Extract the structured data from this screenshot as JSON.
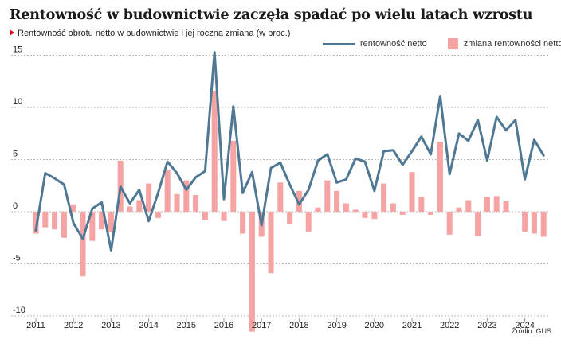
{
  "header": {
    "title": "Rentowność w budownictwie zaczęła spadać po wielu latach wzrostu",
    "subtitle": "Rentowność obrotu netto w budownictwie i jej roczna zmiana (w proc.)"
  },
  "legend": {
    "line_label": "rentowność netto",
    "bar_label": "zmiana rentowności netto"
  },
  "source": "Źródło: GUS",
  "colors": {
    "line": "#4e7893",
    "bars": "#f6a3a3",
    "grid": "#b8b8b8",
    "accent": "#e2001a"
  },
  "chart_data": {
    "type": "bar+line",
    "x_start": "2011-Q1",
    "categories": [
      "2011-Q1",
      "2011-Q2",
      "2011-Q3",
      "2011-Q4",
      "2012-Q1",
      "2012-Q2",
      "2012-Q3",
      "2012-Q4",
      "2013-Q1",
      "2013-Q2",
      "2013-Q3",
      "2013-Q4",
      "2014-Q1",
      "2014-Q2",
      "2014-Q3",
      "2014-Q4",
      "2015-Q1",
      "2015-Q2",
      "2015-Q3",
      "2015-Q4",
      "2016-Q1",
      "2016-Q2",
      "2016-Q3",
      "2016-Q4",
      "2017-Q1",
      "2017-Q2",
      "2017-Q3",
      "2017-Q4",
      "2018-Q1",
      "2018-Q2",
      "2018-Q3",
      "2018-Q4",
      "2019-Q1",
      "2019-Q2",
      "2019-Q3",
      "2019-Q4",
      "2020-Q1",
      "2020-Q2",
      "2020-Q3",
      "2020-Q4",
      "2021-Q1",
      "2021-Q2",
      "2021-Q3",
      "2021-Q4",
      "2022-Q1",
      "2022-Q2",
      "2022-Q3",
      "2022-Q4",
      "2023-Q1",
      "2023-Q2",
      "2023-Q3",
      "2023-Q4",
      "2024-Q1",
      "2024-Q2",
      "2024-Q3",
      "2024-Q4"
    ],
    "series": [
      {
        "name": "rentowność netto",
        "kind": "line",
        "values": [
          -1.8,
          3.7,
          3.2,
          2.6,
          -1.1,
          -2.6,
          0.3,
          0.9,
          -3.7,
          2.4,
          0.8,
          2.1,
          -0.9,
          1.8,
          4.8,
          3.7,
          2.1,
          3.3,
          3.9,
          15.3,
          1.2,
          10.1,
          1.8,
          3.8,
          -1.3,
          4.2,
          4.7,
          2.6,
          0.7,
          2.1,
          4.9,
          5.5,
          2.8,
          3.1,
          5.1,
          4.8,
          2.0,
          5.8,
          5.9,
          4.5,
          5.8,
          7.2,
          5.5,
          11.1,
          3.6,
          7.5,
          6.8,
          8.8,
          4.9,
          9.1,
          7.8,
          8.8,
          3.1,
          6.9,
          5.4,
          null
        ]
      },
      {
        "name": "zmiana rentowności netto",
        "kind": "bar",
        "values": [
          -2.1,
          -1.5,
          -1.7,
          -2.5,
          0.7,
          -6.2,
          -2.8,
          -1.7,
          -1.9,
          4.9,
          0.5,
          1.1,
          2.7,
          -0.6,
          4.0,
          1.7,
          3.0,
          1.6,
          -0.8,
          11.6,
          -0.9,
          6.8,
          -2.1,
          -11.5,
          -2.4,
          -5.9,
          2.8,
          -1.2,
          2.0,
          -1.9,
          0.4,
          3.0,
          2.0,
          0.8,
          0.2,
          -0.6,
          -0.7,
          2.7,
          0.8,
          -0.3,
          3.8,
          1.4,
          -0.3,
          6.7,
          -2.2,
          0.4,
          1.1,
          -2.3,
          1.4,
          1.5,
          1.0,
          0.0,
          -1.9,
          -2.1,
          -2.4,
          null
        ]
      }
    ],
    "ylim": [
      -10,
      15
    ],
    "yticks": [
      -10,
      -5,
      0,
      5,
      10,
      15
    ],
    "xticks": [
      "2011",
      "2012",
      "2013",
      "2014",
      "2015",
      "2016",
      "2017",
      "2018",
      "2019",
      "2020",
      "2021",
      "2022",
      "2023",
      "2024"
    ],
    "grid": "horizontal dashed",
    "legend_position": "top-right"
  }
}
